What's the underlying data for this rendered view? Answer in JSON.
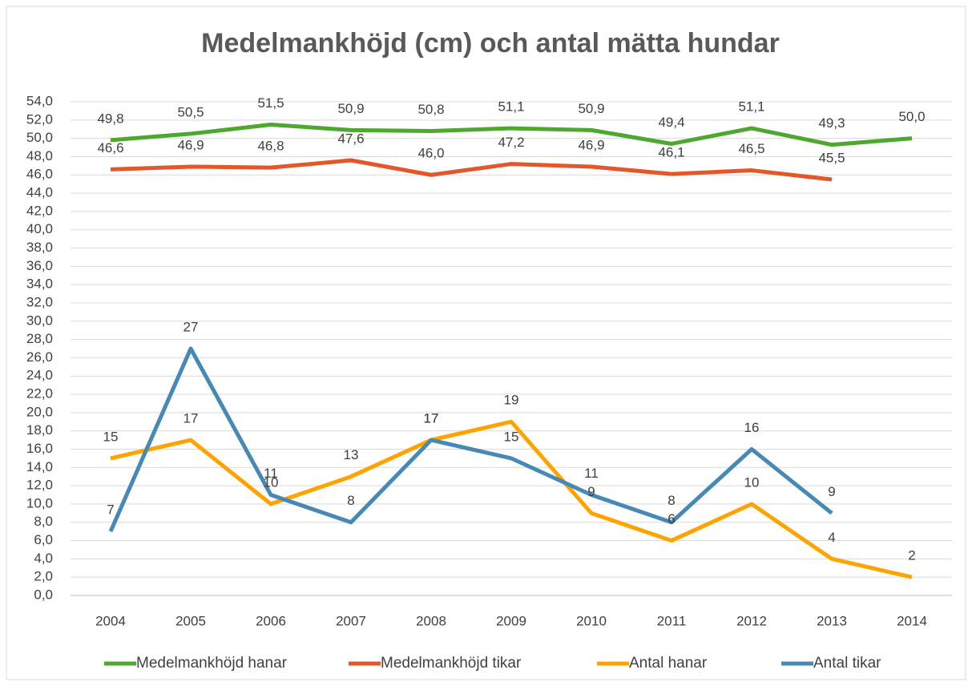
{
  "chart_data": {
    "type": "line",
    "title": "Medelmankhöjd (cm) och antal mätta hundar",
    "categories": [
      "2004",
      "2005",
      "2006",
      "2007",
      "2008",
      "2009",
      "2010",
      "2011",
      "2012",
      "2013",
      "2014"
    ],
    "series": [
      {
        "name": "Medelmankhöjd hanar",
        "color": "#4ea72e",
        "values": [
          49.8,
          50.5,
          51.5,
          50.9,
          50.8,
          51.1,
          50.9,
          49.4,
          51.1,
          49.3,
          50.0
        ],
        "value_labels": [
          "49,8",
          "50,5",
          "51,5",
          "50,9",
          "50,8",
          "51,1",
          "50,9",
          "49,4",
          "51,1",
          "49,3",
          "50,0"
        ]
      },
      {
        "name": "Medelmankhöjd tikar",
        "color": "#e2582a",
        "values": [
          46.6,
          46.9,
          46.8,
          47.6,
          46.0,
          47.2,
          46.9,
          46.1,
          46.5,
          45.5,
          null
        ],
        "value_labels": [
          "46,6",
          "46,9",
          "46,8",
          "47,6",
          "46,0",
          "47,2",
          "46,9",
          "46,1",
          "46,5",
          "45,5",
          null
        ]
      },
      {
        "name": "Antal hanar",
        "color": "#ffa300",
        "values": [
          15,
          17,
          10,
          13,
          17,
          19,
          9,
          6,
          10,
          4,
          2
        ]
      },
      {
        "name": "Antal tikar",
        "color": "#4689b6",
        "values": [
          7,
          27,
          11,
          8,
          17,
          15,
          11,
          8,
          16,
          9,
          null
        ]
      }
    ],
    "ylim": [
      0,
      54
    ],
    "yticks": [
      {
        "value": 0,
        "label": "0,0"
      },
      {
        "value": 2,
        "label": "2,0"
      },
      {
        "value": 4,
        "label": "4,0"
      },
      {
        "value": 6,
        "label": "6,0"
      },
      {
        "value": 8,
        "label": "8,0"
      },
      {
        "value": 10,
        "label": "10,0"
      },
      {
        "value": 12,
        "label": "12,0"
      },
      {
        "value": 14,
        "label": "14,0"
      },
      {
        "value": 16,
        "label": "16,0"
      },
      {
        "value": 18,
        "label": "18,0"
      },
      {
        "value": 20,
        "label": "20,0"
      },
      {
        "value": 22,
        "label": "22,0"
      },
      {
        "value": 24,
        "label": "24,0"
      },
      {
        "value": 26,
        "label": "26,0"
      },
      {
        "value": 28,
        "label": "28,0"
      },
      {
        "value": 30,
        "label": "30,0"
      },
      {
        "value": 32,
        "label": "32,0"
      },
      {
        "value": 34,
        "label": "34,0"
      },
      {
        "value": 36,
        "label": "36,0"
      },
      {
        "value": 38,
        "label": "38,0"
      },
      {
        "value": 40,
        "label": "40,0"
      },
      {
        "value": 42,
        "label": "42,0"
      },
      {
        "value": 44,
        "label": "44,0"
      },
      {
        "value": 46,
        "label": "46,0"
      },
      {
        "value": 48,
        "label": "48,0"
      },
      {
        "value": 50,
        "label": "50,0"
      },
      {
        "value": 52,
        "label": "52,0"
      },
      {
        "value": 54,
        "label": "54,0"
      }
    ],
    "grid": true,
    "legend": "bottom"
  }
}
